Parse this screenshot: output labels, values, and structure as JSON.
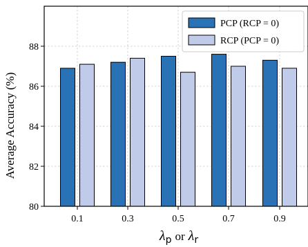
{
  "chart_data": {
    "type": "bar",
    "categories": [
      "0.1",
      "0.3",
      "0.5",
      "0.7",
      "0.9"
    ],
    "series": [
      {
        "name": "PCP (RCP = 0)",
        "color": "#2872b5",
        "values": [
          86.9,
          87.2,
          87.5,
          87.6,
          87.3
        ]
      },
      {
        "name": "RCP (PCP = 0)",
        "color": "#bfcbe8",
        "values": [
          87.1,
          87.4,
          86.7,
          87.0,
          86.9
        ]
      }
    ],
    "ylabel": "Average Accuracy (%)",
    "xlabel_parts": {
      "lambda_symbol": "λ",
      "sub_p": "p",
      "connector": "or",
      "sub_r": "r"
    },
    "ylim": [
      80,
      90
    ],
    "yticks": [
      "80",
      "82",
      "84",
      "86",
      "88"
    ],
    "grid": true,
    "legend": "top-right"
  }
}
